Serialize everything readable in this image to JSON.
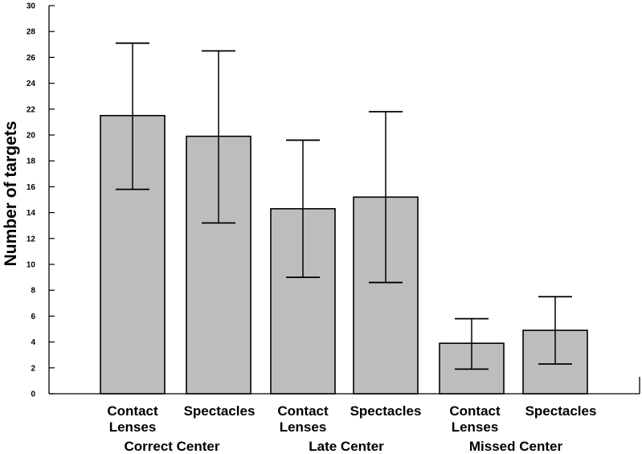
{
  "chart_data": {
    "type": "bar",
    "ylabel": "Number of targets",
    "ylim": [
      0,
      30
    ],
    "y_ticks": [
      0,
      2,
      4,
      6,
      8,
      10,
      12,
      14,
      16,
      18,
      20,
      22,
      24,
      26,
      28,
      30
    ],
    "y_tick_labels": [
      "0",
      "2",
      "4",
      "6",
      "8",
      "10",
      "12",
      "14",
      "16",
      "18",
      "20",
      "22",
      "24",
      "26",
      "28",
      "30"
    ],
    "categories": [
      [
        "Contact",
        "Lenses"
      ],
      [
        "Spectacles"
      ],
      [
        "Contact",
        "Lenses"
      ],
      [
        "Spectacles"
      ],
      [
        "Contact",
        "Lenses"
      ],
      [
        "Spectacles"
      ]
    ],
    "groups": [
      {
        "label": "Correct Center",
        "bars": [
          0,
          1
        ]
      },
      {
        "label": "Late Center",
        "bars": [
          2,
          3
        ]
      },
      {
        "label": "Missed Center",
        "bars": [
          4,
          5
        ]
      }
    ],
    "values": [
      21.5,
      19.9,
      14.3,
      15.2,
      3.9,
      4.9
    ],
    "error_low": [
      15.8,
      13.2,
      9.0,
      8.6,
      1.9,
      2.3
    ],
    "error_high": [
      27.1,
      26.5,
      19.6,
      21.8,
      5.8,
      7.5
    ],
    "grid": false,
    "legend": "none",
    "colors": {
      "bar_fill": "#bdbdbd",
      "bar_stroke": "#000000",
      "axis": "#000000"
    }
  }
}
